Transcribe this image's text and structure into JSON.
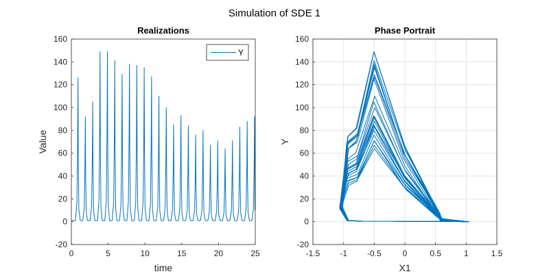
{
  "figure_title": "Simulation of SDE 1",
  "chart_data": [
    {
      "type": "line",
      "title": "Realizations",
      "xlabel": "time",
      "ylabel": "Value",
      "xlim": [
        0,
        25
      ],
      "ylim": [
        -20,
        160
      ],
      "xticks": [
        0,
        5,
        10,
        15,
        20,
        25
      ],
      "yticks": [
        -20,
        0,
        20,
        40,
        60,
        80,
        100,
        120,
        140,
        160
      ],
      "grid": false,
      "legend": {
        "position": "top-right",
        "entries": [
          "Y"
        ]
      },
      "series": [
        {
          "name": "Y",
          "color": "#0072BD",
          "baseline": 1,
          "peaks": [
            [
              0.9,
              126
            ],
            [
              1.9,
              92
            ],
            [
              2.9,
              105
            ],
            [
              3.9,
              149
            ],
            [
              4.9,
              149
            ],
            [
              5.9,
              141
            ],
            [
              6.9,
              129
            ],
            [
              7.9,
              138
            ],
            [
              8.9,
              137
            ],
            [
              9.9,
              135
            ],
            [
              10.9,
              127
            ],
            [
              11.9,
              110
            ],
            [
              12.9,
              100
            ],
            [
              13.9,
              85
            ],
            [
              14.9,
              93
            ],
            [
              15.9,
              84
            ],
            [
              16.9,
              76
            ],
            [
              17.9,
              80
            ],
            [
              18.9,
              67
            ],
            [
              19.9,
              71
            ],
            [
              20.9,
              64
            ],
            [
              21.9,
              71
            ],
            [
              22.9,
              83
            ],
            [
              23.9,
              88
            ],
            [
              24.9,
              92
            ]
          ],
          "end_value": 10
        }
      ]
    },
    {
      "type": "line",
      "title": "Phase Portrait",
      "xlabel": "X1",
      "ylabel": "Y",
      "xlim": [
        -1.5,
        1.5
      ],
      "ylim": [
        -20,
        160
      ],
      "xticks": [
        -1.5,
        -1,
        -0.5,
        0,
        0.5,
        1,
        1.5
      ],
      "yticks": [
        -20,
        0,
        20,
        40,
        60,
        80,
        100,
        120,
        140,
        160
      ],
      "grid": true,
      "series": [
        {
          "color": "#0072BD",
          "cycle_peaks": [
            126,
            92,
            105,
            149,
            149,
            141,
            129,
            138,
            137,
            135,
            127,
            110,
            100,
            85,
            93,
            84,
            76,
            80,
            67,
            71,
            64,
            71,
            83,
            88,
            92
          ]
        }
      ]
    }
  ]
}
